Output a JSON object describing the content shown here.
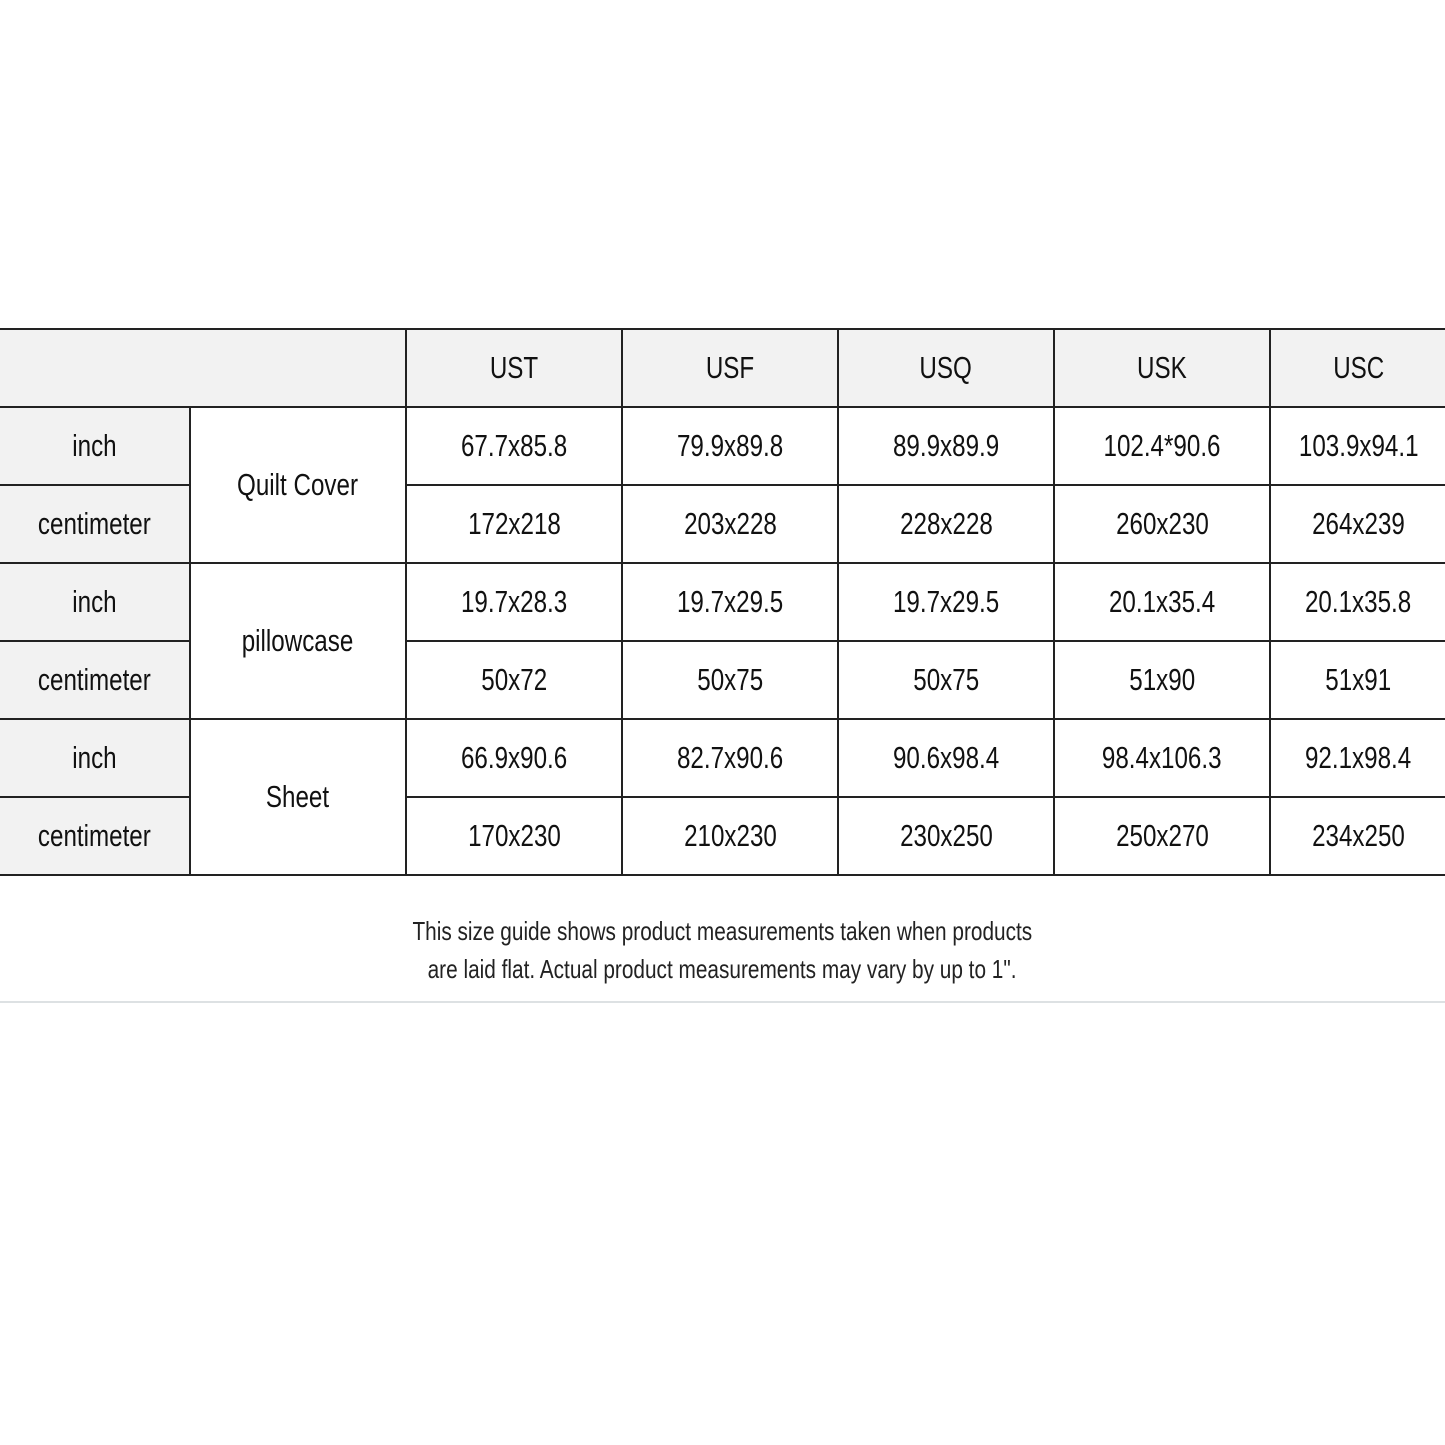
{
  "table": {
    "columns": [
      "UST",
      "USF",
      "USQ",
      "USK",
      "USC"
    ],
    "groups": [
      {
        "product": "Quilt Cover",
        "rows": [
          {
            "unit": "inch",
            "values": [
              "67.7x85.8",
              "79.9x89.8",
              "89.9x89.9",
              "102.4*90.6",
              "103.9x94.1"
            ]
          },
          {
            "unit": "centimeter",
            "values": [
              "172x218",
              "203x228",
              "228x228",
              "260x230",
              "264x239"
            ]
          }
        ]
      },
      {
        "product": "pillowcase",
        "rows": [
          {
            "unit": "inch",
            "values": [
              "19.7x28.3",
              "19.7x29.5",
              "19.7x29.5",
              "20.1x35.4",
              "20.1x35.8"
            ]
          },
          {
            "unit": "centimeter",
            "values": [
              "50x72",
              "50x75",
              "50x75",
              "51x90",
              "51x91"
            ]
          }
        ]
      },
      {
        "product": "Sheet",
        "rows": [
          {
            "unit": "inch",
            "values": [
              "66.9x90.6",
              "82.7x90.6",
              "90.6x98.4",
              "98.4x106.3",
              "92.1x98.4"
            ]
          },
          {
            "unit": "centimeter",
            "values": [
              "170x230",
              "210x230",
              "230x250",
              "250x270",
              "234x250"
            ]
          }
        ]
      }
    ]
  },
  "note": {
    "line1": "This size guide shows product measurements taken when products",
    "line2": "are laid flat. Actual product measurements may vary by up to 1\"."
  },
  "colors": {
    "header_bg": "#f2f2f2",
    "border": "#222222"
  }
}
